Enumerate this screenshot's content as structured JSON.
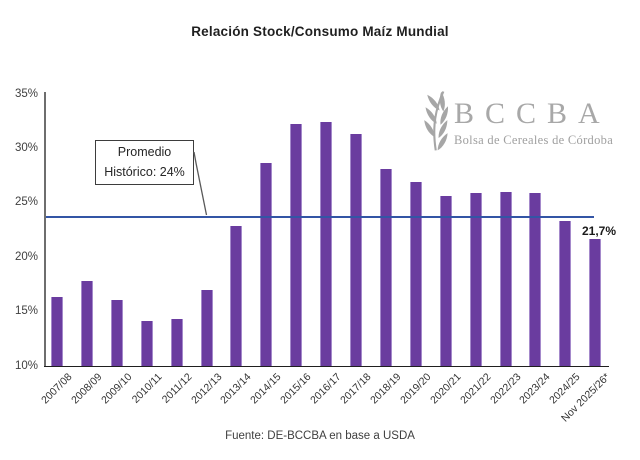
{
  "title": "Relación Stock/Consumo Maíz Mundial",
  "source": "Fuente: DE-BCCBA en base a USDA",
  "annotation": {
    "line1": "Promedio",
    "line2": "Histórico: 24%"
  },
  "logo": {
    "acronym": "BCCBA",
    "subtitle": "Bolsa de Cereales de Córdoba",
    "icon": "wheat-spike-icon"
  },
  "colors": {
    "bar": "#6a3c9f",
    "bar_edge": "#a489cb",
    "average_line": "#3355a5",
    "axis_y": "#6e6e6e",
    "axis_x": "#1f1f1f",
    "text": "#1f1f1f",
    "logo_gray": "#a6a6a6"
  },
  "chart_data": {
    "type": "bar",
    "title": "Relación Stock/Consumo Maíz Mundial",
    "categories": [
      "2007/08",
      "2008/09",
      "2009/10",
      "2010/11",
      "2011/12",
      "2012/13",
      "2013/14",
      "2014/15",
      "2015/16",
      "2016/17",
      "2017/18",
      "2018/19",
      "2019/20",
      "2020/21",
      "2021/22",
      "2022/23",
      "2023/24",
      "2024/25",
      "Nov 2025/26*"
    ],
    "values": [
      16.3,
      17.8,
      16.1,
      14.1,
      14.3,
      17.0,
      22.9,
      28.7,
      32.2,
      32.4,
      31.3,
      28.1,
      26.9,
      25.6,
      25.9,
      26.0,
      25.9,
      23.3,
      21.7
    ],
    "xlabel": "",
    "ylabel": "",
    "ylim": [
      10,
      35
    ],
    "yticks": [
      "10%",
      "15%",
      "20%",
      "25%",
      "30%",
      "35%"
    ],
    "grid": false,
    "legend": false,
    "average_line": {
      "value": 24,
      "drawn_at": 23.7,
      "label": "Promedio Histórico: 24%"
    },
    "data_label": {
      "category": "Nov 2025/26*",
      "text": "21,7%"
    }
  }
}
